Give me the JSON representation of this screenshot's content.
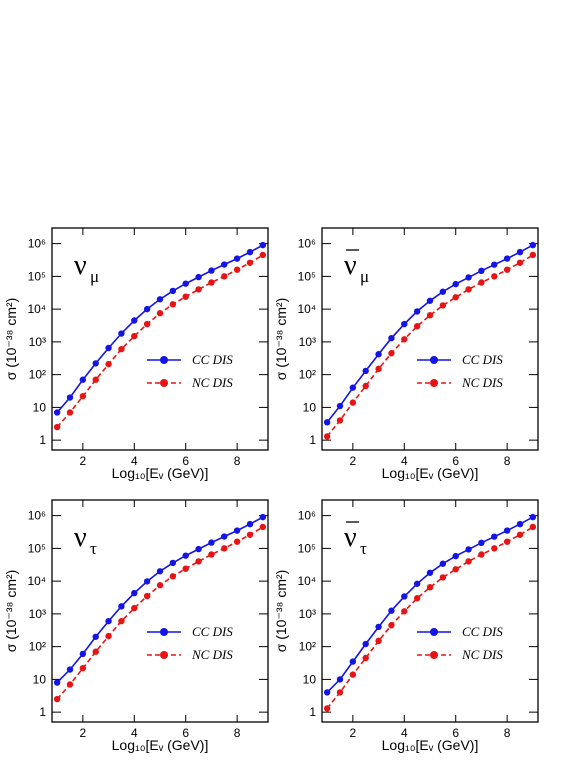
{
  "chart_data": [
    {
      "type": "line",
      "log_y": true,
      "legend": "lower right",
      "label": {
        "main": "ν",
        "sub": "μ",
        "bar": false
      },
      "xlabel": "Log₁₀[Eᵥ (GeV)]",
      "ylabel": "σ (10⁻³⁸ cm²)",
      "xlim": [
        0.8,
        9.2
      ],
      "xticks": [
        2,
        4,
        6,
        8
      ],
      "ylim": [
        0.5,
        3000000
      ],
      "yticks": [
        1,
        10,
        {
          "value": 100,
          "label": "10²"
        },
        {
          "value": 1000,
          "label": "10³"
        },
        {
          "value": 10000,
          "label": "10⁴"
        },
        {
          "value": 100000,
          "label": "10⁵"
        },
        {
          "value": 1000000,
          "label": "10⁶"
        }
      ],
      "x": [
        1,
        1.5,
        2,
        2.5,
        3,
        3.5,
        4,
        4.5,
        5,
        5.5,
        6,
        6.5,
        7,
        7.5,
        8,
        8.5,
        9
      ],
      "series": [
        {
          "name": "CC DIS",
          "color": "#1414e6",
          "dash": false,
          "values": [
            7,
            20,
            70,
            220,
            650,
            1800,
            4500,
            10000,
            20000,
            36000,
            60000,
            95000,
            150000,
            230000,
            350000,
            550000,
            900000
          ]
        },
        {
          "name": "NC DIS",
          "color": "#e61414",
          "dash": true,
          "values": [
            2.5,
            7,
            22,
            70,
            210,
            600,
            1500,
            3500,
            7500,
            14000,
            24000,
            40000,
            65000,
            100000,
            160000,
            260000,
            450000
          ]
        }
      ]
    },
    {
      "type": "line",
      "log_y": true,
      "legend": "lower right",
      "label": {
        "main": "ν",
        "sub": "μ",
        "bar": true
      },
      "xlabel": "Log₁₀[Eᵥ (GeV)]",
      "ylabel": "σ (10⁻³⁸ cm²)",
      "xlim": [
        0.8,
        9.2
      ],
      "xticks": [
        2,
        4,
        6,
        8
      ],
      "ylim": [
        0.5,
        3000000
      ],
      "yticks": [
        1,
        10,
        {
          "value": 100,
          "label": "10²"
        },
        {
          "value": 1000,
          "label": "10³"
        },
        {
          "value": 10000,
          "label": "10⁴"
        },
        {
          "value": 100000,
          "label": "10⁵"
        },
        {
          "value": 1000000,
          "label": "10⁶"
        }
      ],
      "x": [
        1,
        1.5,
        2,
        2.5,
        3,
        3.5,
        4,
        4.5,
        5,
        5.5,
        6,
        6.5,
        7,
        7.5,
        8,
        8.5,
        9
      ],
      "series": [
        {
          "name": "CC DIS",
          "color": "#1414e6",
          "dash": false,
          "values": [
            3.5,
            11,
            40,
            130,
            420,
            1300,
            3500,
            8500,
            18000,
            34000,
            58000,
            93000,
            148000,
            228000,
            350000,
            550000,
            900000
          ]
        },
        {
          "name": "NC DIS",
          "color": "#e61414",
          "dash": true,
          "values": [
            1.3,
            4,
            14,
            45,
            150,
            450,
            1200,
            3000,
            6500,
            13000,
            23000,
            40000,
            65000,
            100000,
            160000,
            260000,
            450000
          ]
        }
      ]
    },
    {
      "type": "line",
      "log_y": true,
      "legend": "lower right",
      "label": {
        "main": "ν",
        "sub": "τ",
        "bar": false
      },
      "xlabel": "Log₁₀[Eᵥ (GeV)]",
      "ylabel": "σ (10⁻³⁸ cm²)",
      "xlim": [
        0.8,
        9.2
      ],
      "xticks": [
        2,
        4,
        6,
        8
      ],
      "ylim": [
        0.5,
        3000000
      ],
      "yticks": [
        1,
        10,
        {
          "value": 100,
          "label": "10²"
        },
        {
          "value": 1000,
          "label": "10³"
        },
        {
          "value": 10000,
          "label": "10⁴"
        },
        {
          "value": 100000,
          "label": "10⁵"
        },
        {
          "value": 1000000,
          "label": "10⁶"
        }
      ],
      "x": [
        1,
        1.5,
        2,
        2.5,
        3,
        3.5,
        4,
        4.5,
        5,
        5.5,
        6,
        6.5,
        7,
        7.5,
        8,
        8.5,
        9
      ],
      "series": [
        {
          "name": "CC DIS",
          "color": "#1414e6",
          "dash": false,
          "values": [
            8,
            20,
            60,
            200,
            600,
            1700,
            4300,
            9800,
            20000,
            36000,
            60000,
            95000,
            150000,
            230000,
            350000,
            550000,
            900000
          ]
        },
        {
          "name": "NC DIS",
          "color": "#e61414",
          "dash": true,
          "values": [
            2.5,
            7,
            22,
            70,
            210,
            600,
            1500,
            3500,
            7500,
            14000,
            24000,
            40000,
            65000,
            100000,
            160000,
            260000,
            450000
          ]
        }
      ]
    },
    {
      "type": "line",
      "log_y": true,
      "legend": "lower right",
      "label": {
        "main": "ν",
        "sub": "τ",
        "bar": true
      },
      "xlabel": "Log₁₀[Eᵥ (GeV)]",
      "ylabel": "σ (10⁻³⁸ cm²)",
      "xlim": [
        0.8,
        9.2
      ],
      "xticks": [
        2,
        4,
        6,
        8
      ],
      "ylim": [
        0.5,
        3000000
      ],
      "yticks": [
        1,
        10,
        {
          "value": 100,
          "label": "10²"
        },
        {
          "value": 1000,
          "label": "10³"
        },
        {
          "value": 10000,
          "label": "10⁴"
        },
        {
          "value": 100000,
          "label": "10⁵"
        },
        {
          "value": 1000000,
          "label": "10⁶"
        }
      ],
      "x": [
        1,
        1.5,
        2,
        2.5,
        3,
        3.5,
        4,
        4.5,
        5,
        5.5,
        6,
        6.5,
        7,
        7.5,
        8,
        8.5,
        9
      ],
      "series": [
        {
          "name": "CC DIS",
          "color": "#1414e6",
          "dash": false,
          "values": [
            4,
            10,
            35,
            120,
            400,
            1250,
            3400,
            8300,
            18000,
            34000,
            58000,
            93000,
            148000,
            228000,
            350000,
            550000,
            900000
          ]
        },
        {
          "name": "NC DIS",
          "color": "#e61414",
          "dash": true,
          "values": [
            1.3,
            4,
            14,
            45,
            150,
            450,
            1200,
            3000,
            6500,
            13000,
            23000,
            40000,
            65000,
            100000,
            160000,
            260000,
            450000
          ]
        }
      ]
    }
  ]
}
